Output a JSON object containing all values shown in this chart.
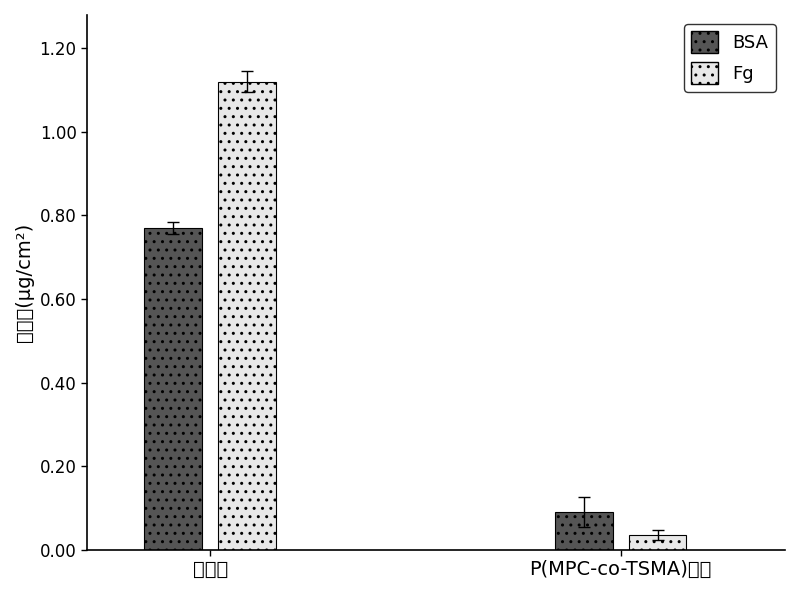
{
  "groups": [
    "盖玻片",
    "P(MPC-co-TSMA)涂层"
  ],
  "bsa_values": [
    0.77,
    0.09
  ],
  "fg_values": [
    1.12,
    0.035
  ],
  "bsa_errors": [
    0.015,
    0.035
  ],
  "fg_errors": [
    0.025,
    0.012
  ],
  "ylabel": "吸附量(μg/cm²)",
  "ylim": [
    0.0,
    1.28
  ],
  "yticks": [
    0.0,
    0.2,
    0.4,
    0.6,
    0.8,
    1.0,
    1.2
  ],
  "bar_width": 0.28,
  "group_positions": [
    0.28,
    0.72
  ],
  "bsa_color": "#555555",
  "fg_color": "#e8e8e8",
  "legend_labels": [
    "BSA",
    "Fg"
  ],
  "figsize": [
    8.0,
    5.94
  ],
  "dpi": 100
}
